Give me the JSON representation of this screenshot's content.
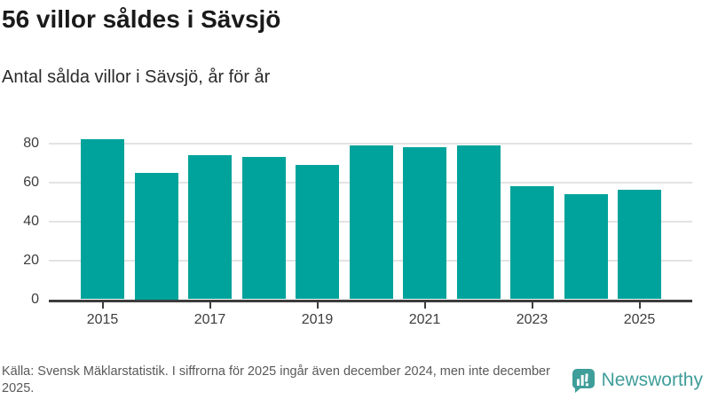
{
  "header": {
    "title": "56 villor såldes i Sävsjö",
    "subtitle": "Antal sålda villor i Sävsjö, år för år"
  },
  "chart_data": {
    "type": "bar",
    "title": "56 villor såldes i Sävsjö",
    "subtitle": "Antal sålda villor i Sävsjö, år för år",
    "categories": [
      "2015",
      "2016",
      "2017",
      "2018",
      "2019",
      "2020",
      "2021",
      "2022",
      "2023",
      "2024",
      "2025"
    ],
    "values": [
      82,
      65,
      74,
      73,
      69,
      79,
      78,
      79,
      58,
      54,
      56
    ],
    "xlabel": "",
    "ylabel": "",
    "x_tick_labels": [
      "2015",
      "2017",
      "2019",
      "2021",
      "2023",
      "2025"
    ],
    "y_ticks": [
      0,
      20,
      40,
      60,
      80
    ],
    "ylim": [
      0,
      88
    ],
    "grid": "horizontal",
    "legend": "none",
    "bar_color": "#00a39b",
    "gridline_color": "#e3e3e3",
    "axis_color": "#3d3d3d"
  },
  "footer": {
    "source_text": "Källa: Svensk Mäklarstatistik. I siffrorna för 2025 ingår även december 2024, men inte december 2025.",
    "brand": {
      "name": "Newsworthy",
      "color": "#3f9e9a",
      "icon": "newsworthy-speech-bubble-barchart-icon"
    }
  }
}
